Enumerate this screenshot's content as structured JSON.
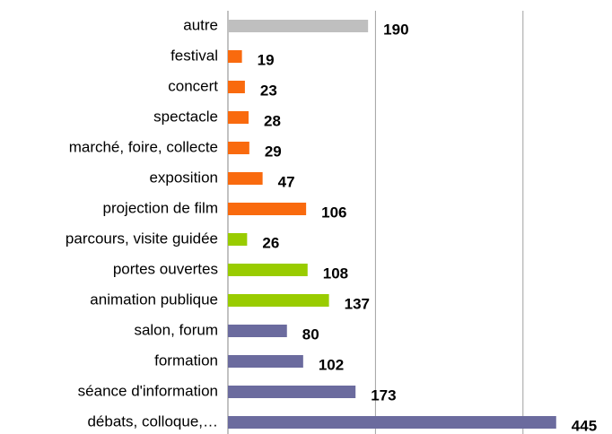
{
  "chart_data": {
    "type": "barh",
    "categories": [
      "autre",
      "festival",
      "concert",
      "spectacle",
      "marché, foire, collecte",
      "exposition",
      "projection de film",
      "parcours, visite guidée",
      "portes ouvertes",
      "animation publique",
      "salon, forum",
      "formation",
      "séance d'information",
      "débats, colloque,…"
    ],
    "values": [
      190,
      19,
      23,
      28,
      29,
      47,
      106,
      26,
      108,
      137,
      80,
      102,
      173,
      445
    ],
    "colors": [
      "#bfbfbf",
      "#f96a0e",
      "#f96a0e",
      "#f96a0e",
      "#f96a0e",
      "#f96a0e",
      "#f96a0e",
      "#99cc00",
      "#99cc00",
      "#99cc00",
      "#6b6b9e",
      "#6b6b9e",
      "#6b6b9e",
      "#6b6b9e"
    ],
    "xlim": [
      0,
      500
    ],
    "xticks": [
      0,
      200,
      400
    ],
    "grid": true
  }
}
